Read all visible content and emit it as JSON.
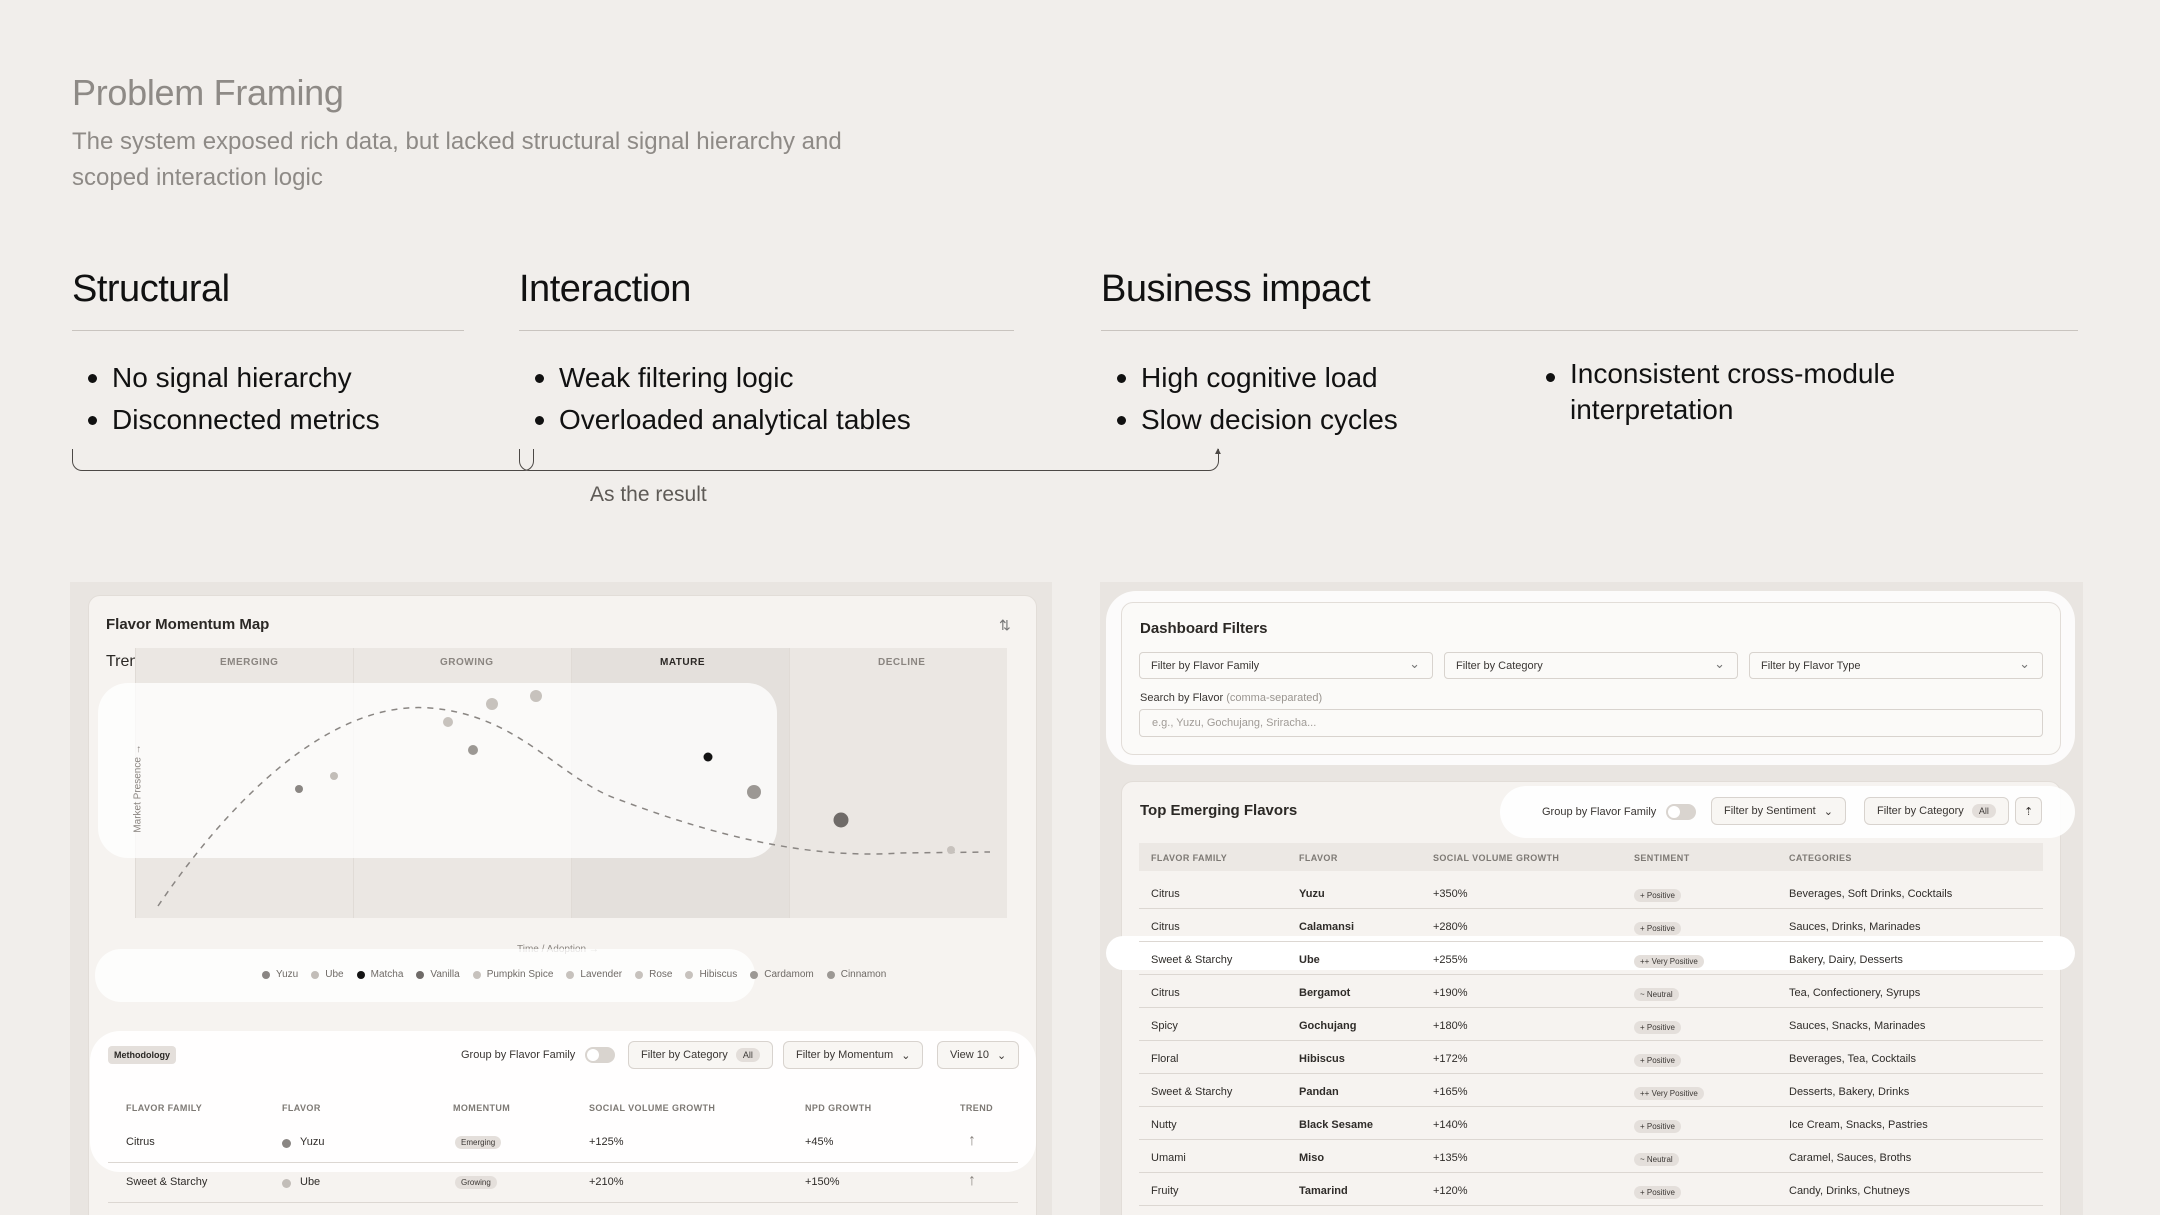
{
  "hero": {
    "title": "Problem Framing",
    "subtitle": "The system exposed rich data, but lacked structural signal hierarchy and scoped interaction logic"
  },
  "columns": [
    {
      "heading": "Structural",
      "items": [
        "No signal hierarchy",
        "Disconnected metrics"
      ]
    },
    {
      "heading": "Interaction",
      "items": [
        "Weak filtering logic",
        "Overloaded analytical tables"
      ]
    },
    {
      "heading": "Business impact",
      "items": [
        "High cognitive load",
        "Slow decision cycles"
      ],
      "items_right": [
        "Inconsistent cross-module interpretation"
      ]
    }
  ],
  "result_label": "As the result",
  "map": {
    "title": "Flavor Momentum Map",
    "trends_label": "Trends",
    "stages": [
      "EMERGING",
      "GROWING",
      "MATURE",
      "DECLINE"
    ],
    "y_axis": "Market Presence →",
    "x_axis": "Time / Adoption →",
    "legend": [
      "Yuzu",
      "Ube",
      "Matcha",
      "Vanilla",
      "Pumpkin Spice",
      "Lavender",
      "Rose",
      "Hibiscus",
      "Cardamom",
      "Cinnamon"
    ],
    "legend_colors": [
      "#8a8683",
      "#c2bdb8",
      "#141414",
      "#6f6b68",
      "#c7c2bd",
      "#c7c2bd",
      "#c7c2bd",
      "#c7c2bd",
      "#9c9894",
      "#9c9894"
    ]
  },
  "momentum_table": {
    "methodology": "Methodology",
    "group_label": "Group by Flavor Family",
    "filter_category": "Filter by Category",
    "filter_category_badge": "All",
    "filter_momentum": "Filter by Momentum",
    "view": "View 10",
    "headers": [
      "FLAVOR FAMILY",
      "FLAVOR",
      "MOMENTUM",
      "SOCIAL VOLUME GROWTH",
      "NPD GROWTH",
      "TREND"
    ],
    "rows": [
      {
        "family": "Citrus",
        "flavor": "Yuzu",
        "momentum": "Emerging",
        "social": "+125%",
        "npd": "+45%",
        "trend": "↑"
      },
      {
        "family": "Sweet & Starchy",
        "flavor": "Ube",
        "momentum": "Growing",
        "social": "+210%",
        "npd": "+150%",
        "trend": "↑"
      }
    ]
  },
  "dashboard": {
    "title": "Dashboard Filters",
    "filters": [
      "Filter by Flavor Family",
      "Filter by Category",
      "Filter by Flavor Type"
    ],
    "search_label": "Search by Flavor",
    "search_hint": "(comma-separated)",
    "search_placeholder": "e.g., Yuzu, Gochujang, Sriracha..."
  },
  "emerging": {
    "title": "Top Emerging Flavors",
    "group_label": "Group by Flavor Family",
    "filter_sentiment": "Filter by Sentiment",
    "filter_category": "Filter by Category",
    "filter_category_badge": "All",
    "headers": [
      "FLAVOR FAMILY",
      "FLAVOR",
      "SOCIAL VOLUME GROWTH",
      "SENTIMENT",
      "CATEGORIES"
    ],
    "rows": [
      {
        "family": "Citrus",
        "flavor": "Yuzu",
        "growth": "+350%",
        "sentiment": "+ Positive",
        "categories": "Beverages, Soft Drinks, Cocktails"
      },
      {
        "family": "Citrus",
        "flavor": "Calamansi",
        "growth": "+280%",
        "sentiment": "+ Positive",
        "categories": "Sauces, Drinks, Marinades"
      },
      {
        "family": "Sweet & Starchy",
        "flavor": "Ube",
        "growth": "+255%",
        "sentiment": "++ Very Positive",
        "categories": "Bakery, Dairy, Desserts"
      },
      {
        "family": "Citrus",
        "flavor": "Bergamot",
        "growth": "+190%",
        "sentiment": "~ Neutral",
        "categories": "Tea, Confectionery, Syrups"
      },
      {
        "family": "Spicy",
        "flavor": "Gochujang",
        "growth": "+180%",
        "sentiment": "+ Positive",
        "categories": "Sauces, Snacks, Marinades"
      },
      {
        "family": "Floral",
        "flavor": "Hibiscus",
        "growth": "+172%",
        "sentiment": "+ Positive",
        "categories": "Beverages, Tea, Cocktails"
      },
      {
        "family": "Sweet & Starchy",
        "flavor": "Pandan",
        "growth": "+165%",
        "sentiment": "++ Very Positive",
        "categories": "Desserts, Bakery, Drinks"
      },
      {
        "family": "Nutty",
        "flavor": "Black Sesame",
        "growth": "+140%",
        "sentiment": "+ Positive",
        "categories": "Ice Cream, Snacks, Pastries"
      },
      {
        "family": "Umami",
        "flavor": "Miso",
        "growth": "+135%",
        "sentiment": "~ Neutral",
        "categories": "Caramel, Sauces, Broths"
      },
      {
        "family": "Fruity",
        "flavor": "Tamarind",
        "growth": "+120%",
        "sentiment": "+ Positive",
        "categories": "Candy, Drinks, Chutneys"
      }
    ]
  }
}
